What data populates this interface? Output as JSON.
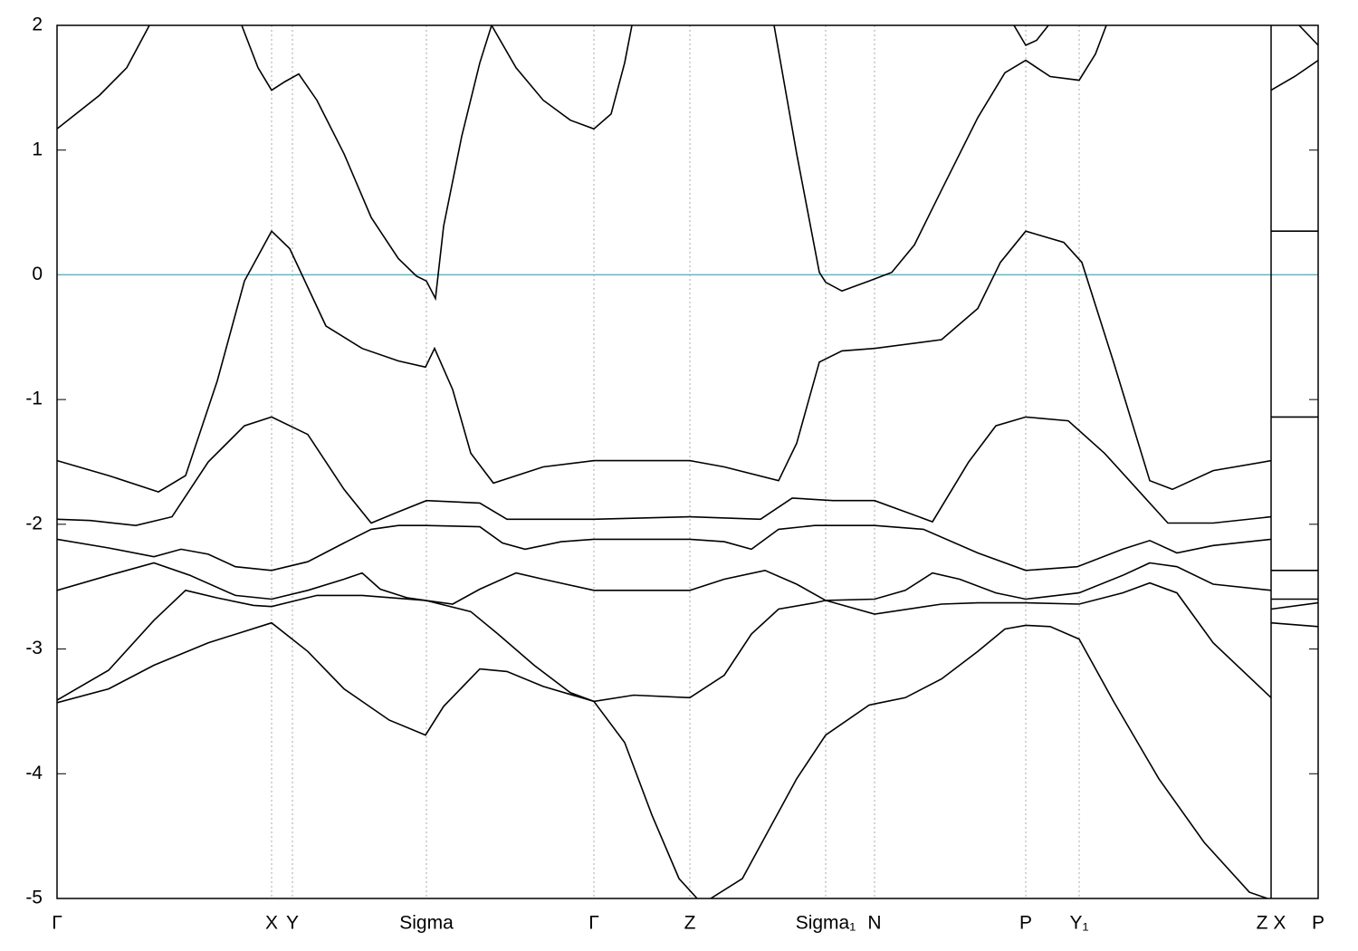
{
  "chart_data": {
    "type": "line",
    "xlim": [
      0,
      1393
    ],
    "ylim": [
      -5,
      2
    ],
    "yticks": [
      -5,
      -4,
      -3,
      -2,
      -1,
      0,
      1,
      2
    ],
    "xticks": [
      {
        "value": 0,
        "label": "Γ"
      },
      {
        "value": 237,
        "label": "X"
      },
      {
        "value": 260,
        "label": "Y"
      },
      {
        "value": 408,
        "label": "Sigma"
      },
      {
        "value": 593,
        "label": "Γ"
      },
      {
        "value": 699,
        "label": "Z"
      },
      {
        "value": 849,
        "label": "Sigma₁"
      },
      {
        "value": 903,
        "label": "N"
      },
      {
        "value": 1070,
        "label": "P"
      },
      {
        "value": 1129,
        "label": "Y₁"
      },
      {
        "value": 1341,
        "label": "Z X"
      },
      {
        "value": 1393,
        "label": "P"
      }
    ],
    "grid": true,
    "breaks": [
      1341
    ],
    "hlines": [
      {
        "value": 0,
        "color": "#5fb7c9"
      }
    ],
    "series": [
      {
        "color": "#000000",
        "x": [
          0,
          47,
          77,
          102,
          102,
          204,
          222,
          237,
          252,
          267,
          287,
          317,
          347,
          377,
          397,
          408,
          418,
          427,
          447,
          467,
          480,
          507,
          537,
          567,
          593,
          612,
          627,
          635,
          635,
          792,
          817,
          842,
          849,
          867,
          897,
          922,
          947,
          977,
          1017,
          1047,
          1070,
          1097,
          1129,
          1147,
          1159,
          1159,
          1341,
          1367,
          1393
        ],
        "values": [
          1.17,
          1.44,
          1.66,
          2.0,
          null,
          2.0,
          1.66,
          1.48,
          1.55,
          1.61,
          1.4,
          0.97,
          0.46,
          0.13,
          -0.01,
          -0.05,
          -0.19,
          0.39,
          1.11,
          1.7,
          2.0,
          1.66,
          1.4,
          1.24,
          1.17,
          1.29,
          1.7,
          2.0,
          null,
          2.0,
          0.97,
          0.02,
          -0.06,
          -0.13,
          -0.05,
          0.02,
          0.24,
          0.68,
          1.26,
          1.62,
          1.72,
          1.59,
          1.56,
          1.77,
          2.0,
          null,
          1.48,
          1.59,
          1.72
        ]
      },
      {
        "color": "#000000",
        "x": [
          1057,
          1070,
          1082,
          1095,
          1095,
          1372,
          1393
        ],
        "values": [
          2.0,
          1.84,
          1.88,
          2.0,
          null,
          2.0,
          1.84
        ]
      },
      {
        "color": "#000000",
        "x": [
          0,
          57,
          112,
          142,
          177,
          207,
          237,
          257,
          297,
          337,
          377,
          407,
          417,
          437,
          457,
          482,
          537,
          593,
          699,
          737,
          797,
          817,
          842,
          867,
          903,
          977,
          1017,
          1042,
          1070,
          1112,
          1132,
          1167,
          1207,
          1232,
          1277,
          1341,
          1341,
          1341,
          1393
        ],
        "values": [
          -1.49,
          -1.61,
          -1.74,
          -1.61,
          -0.85,
          -0.05,
          0.35,
          0.21,
          -0.41,
          -0.59,
          -0.69,
          -0.74,
          -0.59,
          -0.92,
          -1.43,
          -1.67,
          -1.54,
          -1.49,
          -1.49,
          -1.54,
          -1.65,
          -1.35,
          -0.7,
          -0.61,
          -0.59,
          -0.52,
          -0.27,
          0.1,
          0.35,
          0.26,
          0.1,
          -0.7,
          -1.65,
          -1.72,
          -1.57,
          -1.49,
          null,
          0.35,
          0.35
        ]
      },
      {
        "color": "#000000",
        "x": [
          0,
          37,
          87,
          127,
          167,
          207,
          237,
          277,
          317,
          347,
          377,
          408,
          467,
          497,
          593,
          699,
          777,
          812,
          857,
          903,
          937,
          967,
          1007,
          1037,
          1070,
          1117,
          1157,
          1197,
          1227,
          1277,
          1341,
          1341,
          1341,
          1393
        ],
        "values": [
          -1.96,
          -1.97,
          -2.01,
          -1.94,
          -1.5,
          -1.21,
          -1.14,
          -1.28,
          -1.72,
          -1.99,
          -1.9,
          -1.81,
          -1.83,
          -1.96,
          -1.96,
          -1.94,
          -1.96,
          -1.79,
          -1.81,
          -1.81,
          -1.9,
          -1.98,
          -1.5,
          -1.21,
          -1.14,
          -1.17,
          -1.43,
          -1.75,
          -1.99,
          -1.99,
          -1.94,
          null,
          -1.14,
          -1.14
        ]
      },
      {
        "color": "#000000",
        "x": [
          0,
          57,
          107,
          137,
          167,
          197,
          237,
          277,
          317,
          347,
          377,
          407,
          467,
          492,
          517,
          557,
          593,
          699,
          737,
          767,
          797,
          837,
          903,
          957,
          1017,
          1070,
          1127,
          1177,
          1207,
          1237,
          1277,
          1341,
          1341,
          1341,
          1393
        ],
        "values": [
          -2.12,
          -2.19,
          -2.26,
          -2.2,
          -2.24,
          -2.34,
          -2.37,
          -2.3,
          -2.15,
          -2.04,
          -2.01,
          -2.01,
          -2.02,
          -2.15,
          -2.2,
          -2.14,
          -2.12,
          -2.12,
          -2.14,
          -2.2,
          -2.04,
          -2.01,
          -2.01,
          -2.04,
          -2.23,
          -2.37,
          -2.34,
          -2.2,
          -2.13,
          -2.23,
          -2.17,
          -2.12,
          null,
          -2.37,
          -2.37
        ]
      },
      {
        "color": "#000000",
        "x": [
          0,
          57,
          107,
          147,
          197,
          237,
          277,
          317,
          337,
          357,
          387,
          407,
          437,
          467,
          507,
          537,
          593,
          699,
          737,
          782,
          817,
          849,
          903,
          937,
          967,
          997,
          1037,
          1070,
          1129,
          1177,
          1207,
          1237,
          1277,
          1341,
          1341,
          1341,
          1393
        ],
        "values": [
          -2.53,
          -2.41,
          -2.31,
          -2.41,
          -2.57,
          -2.6,
          -2.53,
          -2.44,
          -2.39,
          -2.52,
          -2.59,
          -2.61,
          -2.64,
          -2.52,
          -2.39,
          -2.44,
          -2.53,
          -2.53,
          -2.44,
          -2.37,
          -2.48,
          -2.61,
          -2.6,
          -2.53,
          -2.39,
          -2.44,
          -2.55,
          -2.6,
          -2.55,
          -2.41,
          -2.31,
          -2.34,
          -2.48,
          -2.53,
          null,
          -2.6,
          -2.6
        ]
      },
      {
        "color": "#000000",
        "x": [
          0,
          57,
          107,
          142,
          177,
          217,
          237,
          287,
          337,
          407,
          457,
          487,
          527,
          567,
          593,
          637,
          699,
          737,
          767,
          797,
          837,
          849,
          903,
          977,
          1017,
          1070,
          1129,
          1177,
          1207,
          1237,
          1277,
          1341,
          1341,
          1341,
          1393
        ],
        "values": [
          -3.41,
          -3.17,
          -2.77,
          -2.53,
          -2.59,
          -2.65,
          -2.66,
          -2.57,
          -2.57,
          -2.61,
          -2.7,
          -2.88,
          -3.13,
          -3.35,
          -3.42,
          -3.37,
          -3.39,
          -3.21,
          -2.88,
          -2.68,
          -2.63,
          -2.61,
          -2.72,
          -2.64,
          -2.63,
          -2.63,
          -2.64,
          -2.55,
          -2.47,
          -2.55,
          -2.95,
          -3.39,
          null,
          -2.68,
          -2.63
        ]
      },
      {
        "color": "#000000",
        "x": [
          0,
          57,
          107,
          167,
          237,
          277,
          317,
          367,
          407,
          427,
          467,
          497,
          537,
          593,
          627,
          657,
          687,
          707,
          707,
          722,
          757,
          787,
          817,
          849,
          897,
          903,
          937,
          977,
          1017,
          1047,
          1070,
          1097,
          1129,
          1167,
          1217,
          1267,
          1317,
          1337,
          1337,
          1341,
          1393
        ],
        "values": [
          -3.43,
          -3.32,
          -3.13,
          -2.95,
          -2.79,
          -3.02,
          -3.32,
          -3.57,
          -3.69,
          -3.46,
          -3.16,
          -3.18,
          -3.3,
          -3.42,
          -3.75,
          -4.33,
          -4.84,
          -5.0,
          null,
          -5.0,
          -4.84,
          -4.44,
          -4.04,
          -3.69,
          -3.45,
          -3.44,
          -3.39,
          -3.24,
          -3.02,
          -2.84,
          -2.81,
          -2.82,
          -2.92,
          -3.42,
          -4.04,
          -4.55,
          -4.95,
          -5.0,
          null,
          -2.79,
          -2.82
        ]
      }
    ]
  }
}
